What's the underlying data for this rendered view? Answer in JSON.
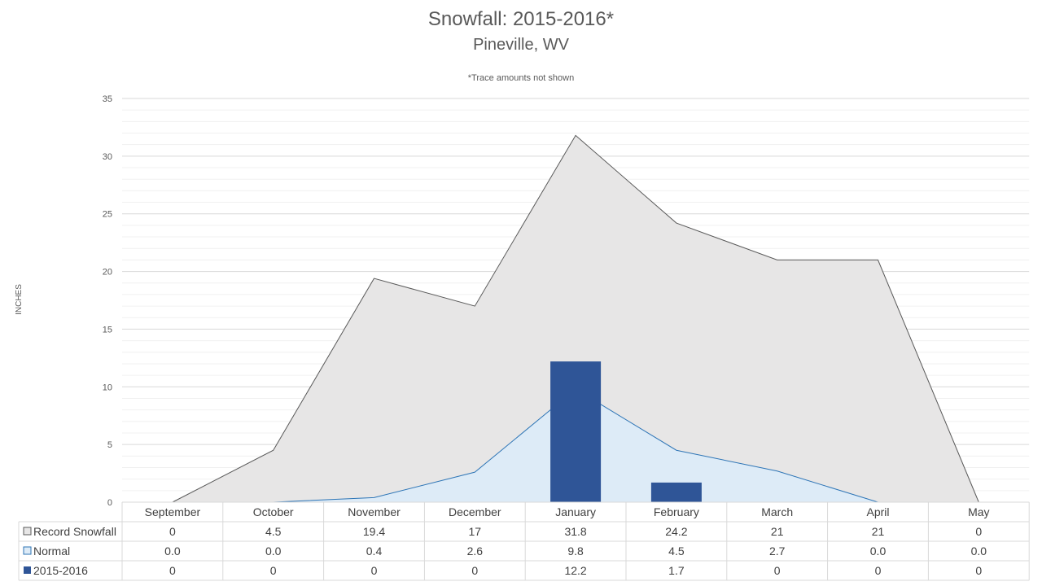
{
  "chart_data": {
    "type": "area",
    "title": "Snowfall: 2015-2016*",
    "subtitle": "Pineville, WV",
    "note": "*Trace amounts not shown",
    "ylabel": "INCHES",
    "ylim": [
      0,
      35
    ],
    "yticks": [
      "0",
      "5",
      "10",
      "15",
      "20",
      "25",
      "30",
      "35"
    ],
    "categories": [
      "September",
      "October",
      "November",
      "December",
      "January",
      "February",
      "March",
      "April",
      "May"
    ],
    "grid": true,
    "legend": "data-table",
    "series": [
      {
        "name": "Record Snowfall",
        "kind": "area",
        "color": "#e7e6e6",
        "stroke": "#595959",
        "values": [
          0,
          4.5,
          19.4,
          17,
          31.8,
          24.2,
          21,
          21,
          0
        ],
        "labels": [
          "0",
          "4.5",
          "19.4",
          "17",
          "31.8",
          "24.2",
          "21",
          "21",
          "0"
        ]
      },
      {
        "name": "Normal",
        "kind": "area",
        "color": "#ddebf7",
        "stroke": "#2e75b6",
        "values": [
          0.0,
          0.0,
          0.4,
          2.6,
          9.8,
          4.5,
          2.7,
          0.0,
          0.0
        ],
        "labels": [
          "0.0",
          "0.0",
          "0.4",
          "2.6",
          "9.8",
          "4.5",
          "2.7",
          "0.0",
          "0.0"
        ]
      },
      {
        "name": "2015-2016",
        "kind": "bar",
        "color": "#2f5597",
        "values": [
          0,
          0,
          0,
          0,
          12.2,
          1.7,
          0,
          0,
          0
        ],
        "labels": [
          "0",
          "0",
          "0",
          "0",
          "12.2",
          "1.7",
          "0",
          "0",
          "0"
        ]
      }
    ]
  }
}
